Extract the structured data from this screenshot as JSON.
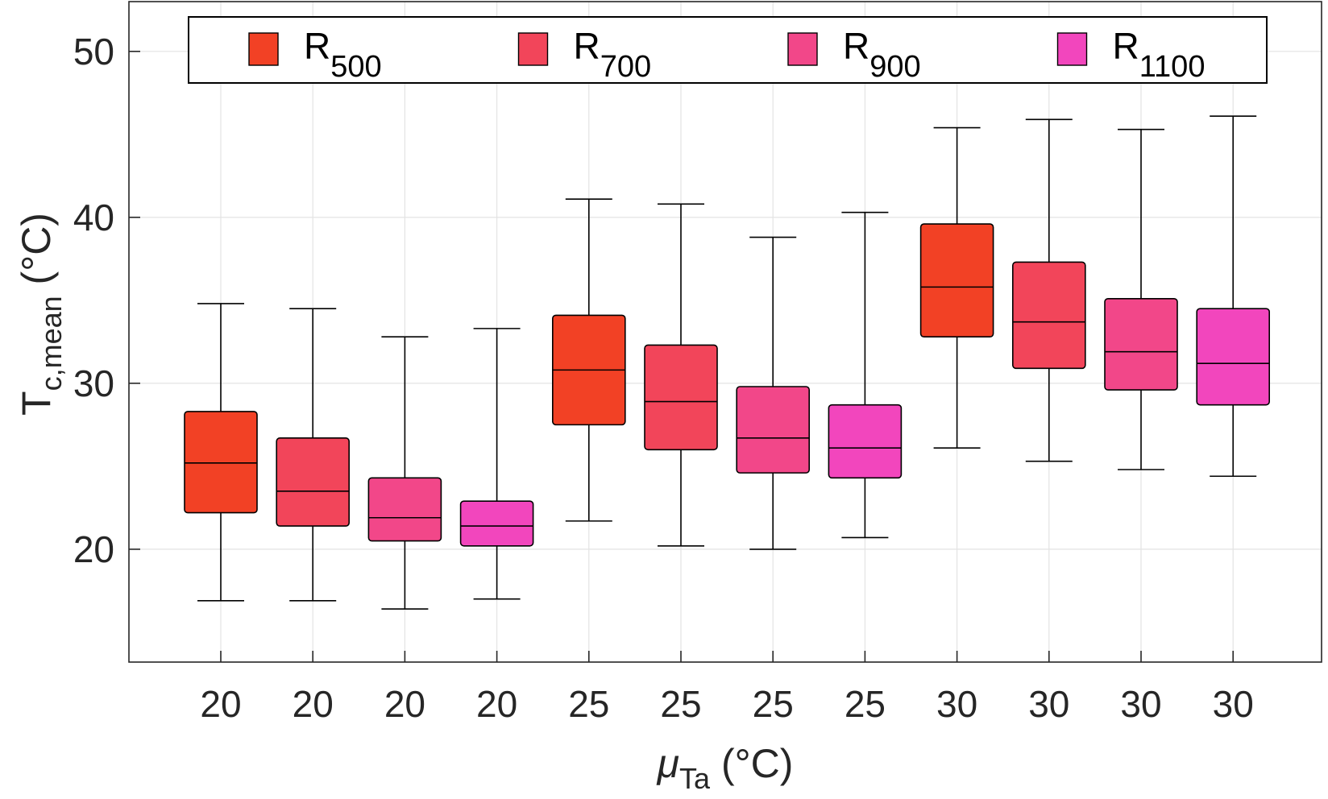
{
  "chart_data": {
    "type": "box",
    "categories": [
      "20",
      "20",
      "20",
      "20",
      "25",
      "25",
      "25",
      "25",
      "30",
      "30",
      "30",
      "30"
    ],
    "xlabel": {
      "main": "μ",
      "sub": "Ta",
      "unit": " (°C)"
    },
    "ylabel": {
      "main": "T",
      "sub": "c,mean",
      "unit": " (°C)"
    },
    "ylim": [
      13.2,
      53
    ],
    "yticks": [
      20,
      30,
      40,
      50
    ],
    "grid": true,
    "legend": {
      "position": "top",
      "orientation": "horizontal"
    },
    "series": [
      {
        "name": "R",
        "sub": "500",
        "color": "#f24125"
      },
      {
        "name": "R",
        "sub": "700",
        "color": "#f2455a"
      },
      {
        "name": "R",
        "sub": "900",
        "color": "#f24789"
      },
      {
        "name": "R",
        "sub": "1100",
        "color": "#f246bd"
      }
    ],
    "boxes": [
      {
        "series": 0,
        "whisker_low": 16.9,
        "q1": 22.2,
        "median": 25.2,
        "q3": 28.3,
        "whisker_high": 34.8
      },
      {
        "series": 1,
        "whisker_low": 16.9,
        "q1": 21.4,
        "median": 23.5,
        "q3": 26.7,
        "whisker_high": 34.5
      },
      {
        "series": 2,
        "whisker_low": 16.4,
        "q1": 20.5,
        "median": 21.9,
        "q3": 24.3,
        "whisker_high": 32.8
      },
      {
        "series": 3,
        "whisker_low": 17.0,
        "q1": 20.2,
        "median": 21.4,
        "q3": 22.9,
        "whisker_high": 33.3
      },
      {
        "series": 0,
        "whisker_low": 21.7,
        "q1": 27.5,
        "median": 30.8,
        "q3": 34.1,
        "whisker_high": 41.1
      },
      {
        "series": 1,
        "whisker_low": 20.2,
        "q1": 26.0,
        "median": 28.9,
        "q3": 32.3,
        "whisker_high": 40.8
      },
      {
        "series": 2,
        "whisker_low": 20.0,
        "q1": 24.6,
        "median": 26.7,
        "q3": 29.8,
        "whisker_high": 38.8
      },
      {
        "series": 3,
        "whisker_low": 20.7,
        "q1": 24.3,
        "median": 26.1,
        "q3": 28.7,
        "whisker_high": 40.3
      },
      {
        "series": 0,
        "whisker_low": 26.1,
        "q1": 32.8,
        "median": 35.8,
        "q3": 39.6,
        "whisker_high": 45.4
      },
      {
        "series": 1,
        "whisker_low": 25.3,
        "q1": 30.9,
        "median": 33.7,
        "q3": 37.3,
        "whisker_high": 45.9
      },
      {
        "series": 2,
        "whisker_low": 24.8,
        "q1": 29.6,
        "median": 31.9,
        "q3": 35.1,
        "whisker_high": 45.3
      },
      {
        "series": 3,
        "whisker_low": 24.4,
        "q1": 28.7,
        "median": 31.2,
        "q3": 34.5,
        "whisker_high": 46.1
      }
    ]
  }
}
